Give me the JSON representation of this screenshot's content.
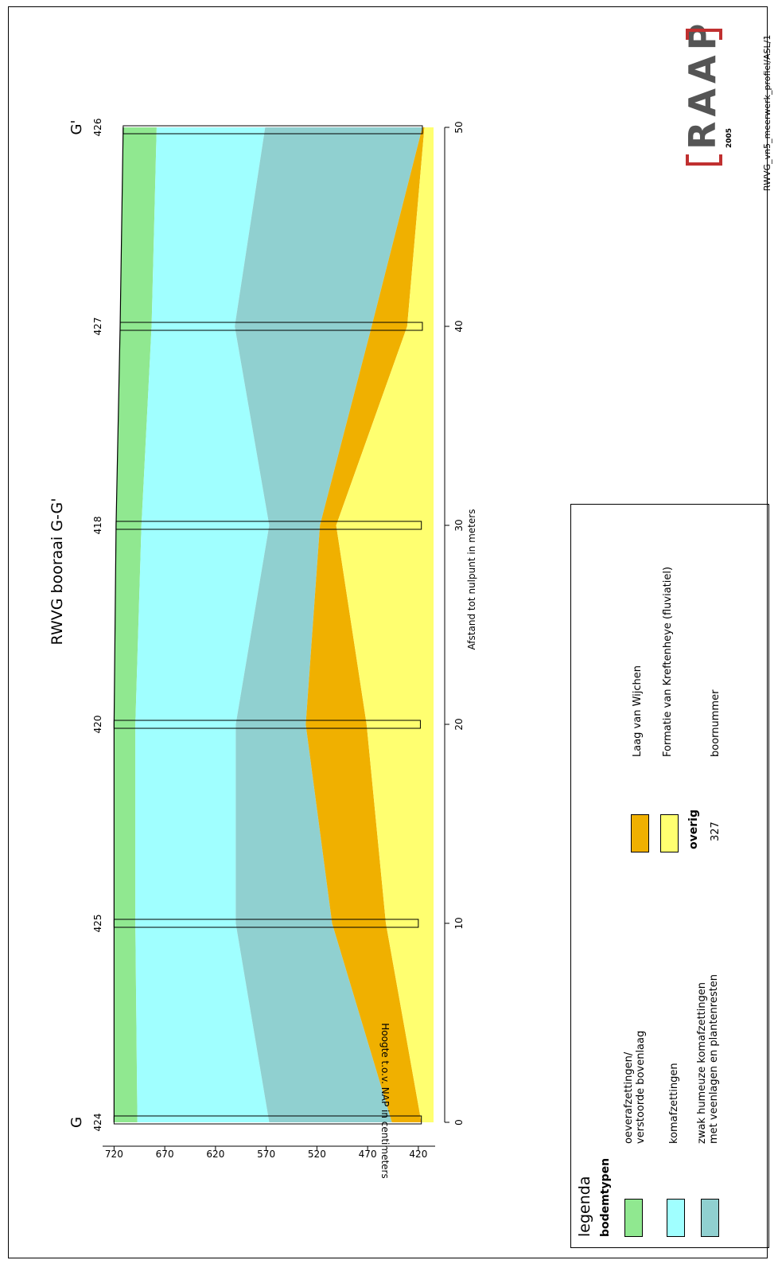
{
  "chart_data": {
    "type": "area",
    "title": "RWVG booraai G-G'",
    "xlabel": "Afstand tot nulpunt in meters",
    "ylabel": "Hoogte t.o.v. NAP in centimeters",
    "xlim": [
      0,
      50
    ],
    "ylim": [
      405,
      725
    ],
    "xticks": [
      "0",
      "10",
      "20",
      "30",
      "40",
      "50"
    ],
    "yticks": [
      "720",
      "670",
      "620",
      "570",
      "520",
      "470",
      "420"
    ],
    "section_labels": {
      "start": "G",
      "end": "G'"
    },
    "x": [
      0,
      10,
      20,
      30,
      40,
      50
    ],
    "layers": [
      {
        "name": "oeverafzettingen/ verstoorde bovenlaag",
        "color": "#90e890",
        "top": [
          720,
          720,
          720,
          718,
          714,
          711
        ],
        "bottom": [
          697,
          699,
          699,
          693,
          683,
          678
        ]
      },
      {
        "name": "komafzettingen",
        "color": "#a0ffff",
        "top": [
          697,
          699,
          699,
          693,
          683,
          678
        ],
        "bottom": [
          567,
          600,
          600,
          567,
          601,
          571
        ]
      },
      {
        "name": "zwak humeuze komafzettingen met veenlagen en plantenresten",
        "color": "#90d0d0",
        "top": [
          567,
          600,
          600,
          567,
          601,
          571
        ],
        "bottom": [
          446,
          505,
          531,
          517,
          466,
          416
        ]
      },
      {
        "name": "Laag van Wijchen",
        "color": "#f0b000",
        "top": [
          446,
          505,
          531,
          517,
          466,
          416
        ],
        "bottom": [
          417,
          452,
          471,
          501,
          431,
          414
        ]
      },
      {
        "name": "Formatie van Kreftenheye (fluviatiel)",
        "color": "#ffff70",
        "top": [
          417,
          452,
          471,
          501,
          431,
          414
        ],
        "bottom": [
          405,
          405,
          405,
          405,
          405,
          405
        ]
      }
    ],
    "boreholes": [
      {
        "number": "424",
        "x": 0,
        "top": 720,
        "bottom": 417
      },
      {
        "number": "425",
        "x": 10,
        "top": 720,
        "bottom": 420
      },
      {
        "number": "420",
        "x": 20,
        "top": 720,
        "bottom": 418
      },
      {
        "number": "418",
        "x": 30,
        "top": 718,
        "bottom": 417
      },
      {
        "number": "427",
        "x": 40,
        "top": 714,
        "bottom": 416
      },
      {
        "number": "426",
        "x": 50,
        "top": 711,
        "bottom": 416
      }
    ]
  },
  "legend": {
    "title": "legenda",
    "bodemtypen_heading": "bodemtypen",
    "items": [
      {
        "line1": "oeverafzettingen/",
        "line2": "verstoorde bovenlaag",
        "color": "#90e890"
      },
      {
        "line1": "komafzettingen",
        "line2": "",
        "color": "#a0ffff"
      },
      {
        "line1": "zwak humeuze komafzettingen",
        "line2": "met veenlagen en plantenresten",
        "color": "#90d0d0"
      },
      {
        "line1": "Laag van Wijchen",
        "line2": "",
        "color": "#f0b000"
      },
      {
        "line1": "Formatie van Kreftenheye (fluviatiel)",
        "line2": "",
        "color": "#ffff70"
      }
    ],
    "overig_heading": "overig",
    "example_number": "327",
    "example_label": "boornummer"
  },
  "logo": {
    "letters": "RAAP",
    "year": "2005"
  },
  "footer_code": "RWVG_vn5_meerwerk_profiel/ASL/1"
}
